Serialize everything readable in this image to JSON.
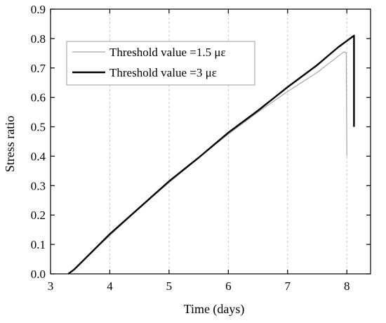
{
  "chart_data": {
    "type": "line",
    "xlabel": "Time (days)",
    "ylabel": "Stress ratio",
    "xlim": [
      3,
      8.4
    ],
    "ylim": [
      0,
      0.9
    ],
    "xticks": [
      "3",
      "4",
      "5",
      "6",
      "7",
      "8"
    ],
    "yticks": [
      "0.0",
      "0.1",
      "0.2",
      "0.3",
      "0.4",
      "0.5",
      "0.6",
      "0.7",
      "0.8",
      "0.9"
    ],
    "grid": "dashed vertical",
    "legend_position": "top-left",
    "series": [
      {
        "name": "Threshold value =1.5 με",
        "color": "#a6a6a6",
        "x": [
          3.3,
          3.4,
          3.7,
          4.0,
          4.5,
          5.0,
          5.5,
          6.0,
          6.5,
          7.0,
          7.5,
          7.95,
          7.99,
          8.0
        ],
        "y": [
          0.0,
          0.015,
          0.075,
          0.13,
          0.225,
          0.31,
          0.395,
          0.475,
          0.55,
          0.62,
          0.685,
          0.755,
          0.75,
          0.4
        ]
      },
      {
        "name": "Threshold value =3 με",
        "color": "#000000",
        "x": [
          3.3,
          3.4,
          3.7,
          4.0,
          4.5,
          5.0,
          5.5,
          6.0,
          6.5,
          7.0,
          7.5,
          7.85,
          8.12,
          8.12
        ],
        "y": [
          0.0,
          0.015,
          0.075,
          0.135,
          0.225,
          0.315,
          0.395,
          0.48,
          0.555,
          0.635,
          0.71,
          0.77,
          0.81,
          0.5
        ]
      }
    ]
  }
}
